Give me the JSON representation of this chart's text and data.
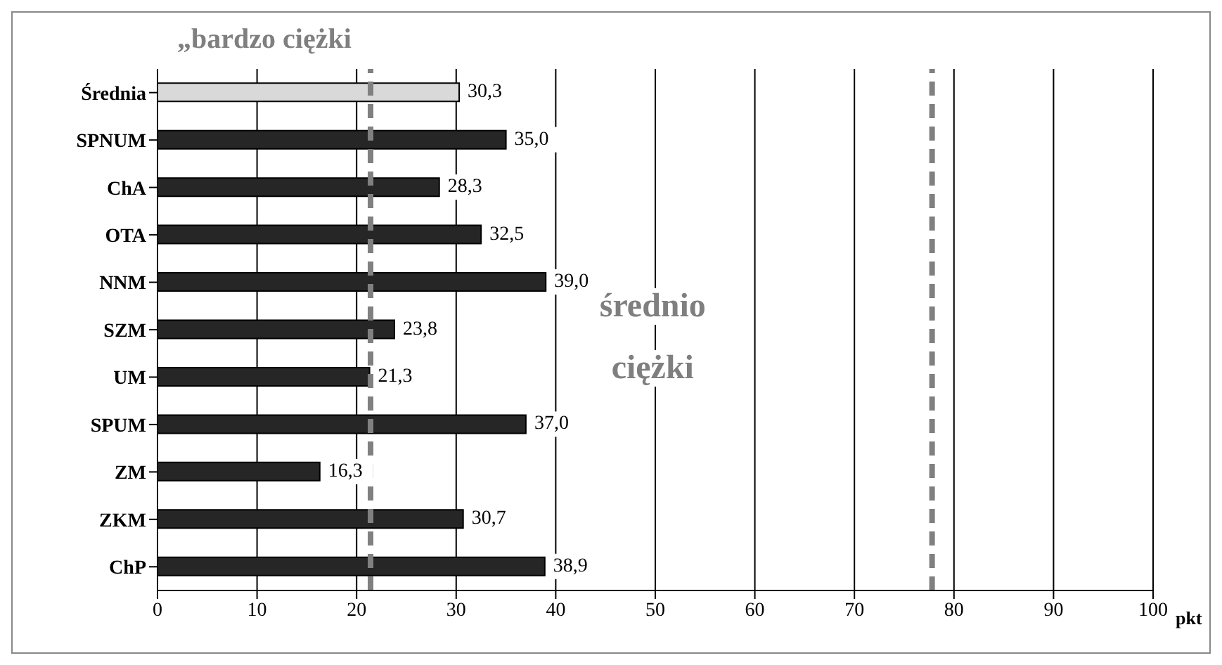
{
  "chart_data": {
    "type": "bar",
    "orientation": "horizontal",
    "xlabel": "pkt",
    "categories": [
      "Średnia",
      "SPNUM",
      "ChA",
      "OTA",
      "NNM",
      "SZM",
      "UM",
      "SPUM",
      "ZM",
      "ZKM",
      "ChP"
    ],
    "values": [
      30.3,
      35.0,
      28.3,
      32.5,
      39.0,
      23.8,
      21.3,
      37.0,
      16.3,
      30.7,
      38.9
    ],
    "value_labels": [
      "30,3",
      "35,0",
      "28,3",
      "32,5",
      "39,0",
      "23,8",
      "21,3",
      "37,0",
      "16,3",
      "30,7",
      "38,9"
    ],
    "colors": [
      "#d9d9d9",
      "#262626",
      "#262626",
      "#262626",
      "#262626",
      "#262626",
      "#262626",
      "#262626",
      "#262626",
      "#262626",
      "#262626"
    ],
    "xlim": [
      0,
      100
    ],
    "xticks": [
      0,
      10,
      20,
      30,
      40,
      50,
      60,
      70,
      80,
      90,
      100
    ],
    "grid": "x",
    "ref_lines": [
      {
        "axis": "x",
        "value": 21.4,
        "color": "#808080",
        "line_style": "dashed"
      },
      {
        "axis": "x",
        "value": 77.8,
        "color": "#808080",
        "line_style": "dashed"
      }
    ],
    "annotations": [
      "„bardzo ciężki",
      "średnio ciężki"
    ]
  }
}
